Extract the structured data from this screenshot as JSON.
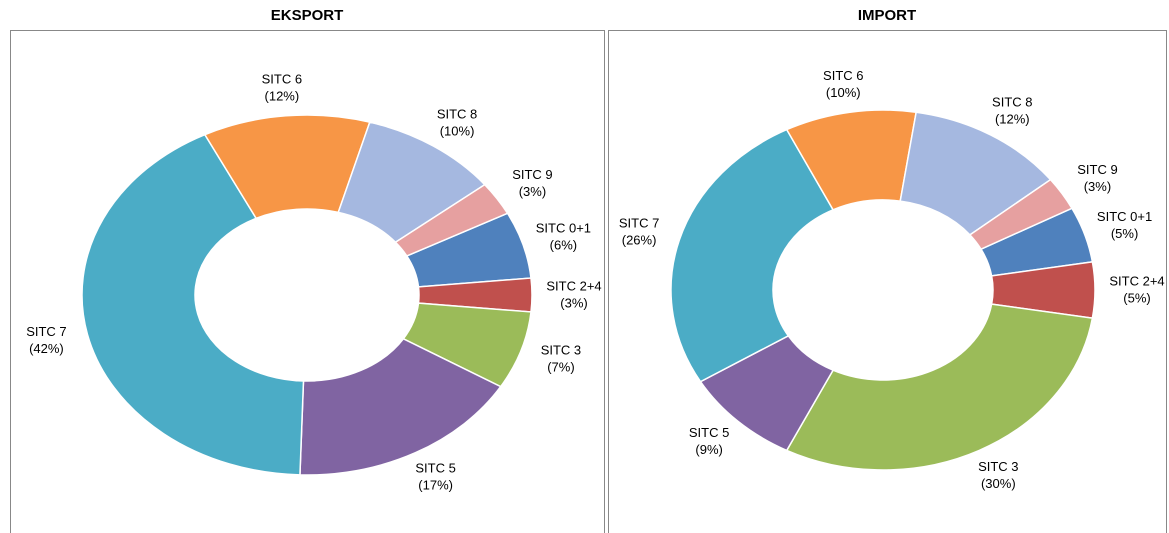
{
  "chart_data": [
    {
      "type": "donut",
      "title": "EKSPORT",
      "categories": [
        "SITC 0+1",
        "SITC 2+4",
        "SITC 3",
        "SITC 5",
        "SITC 7",
        "SITC 6",
        "SITC 8",
        "SITC 9"
      ],
      "values": [
        6,
        3,
        7,
        17,
        42,
        12,
        10,
        3
      ],
      "value_labels": [
        "(6%)",
        "(3%)",
        "(7%)",
        "(17%)",
        "(42%)",
        "(12%)",
        "(10%)",
        "(3%)"
      ],
      "colors": [
        "#4f81bd",
        "#c0504d",
        "#9bbb59",
        "#8064a2",
        "#4bacc6",
        "#f79646",
        "#a5b8e0",
        "#e6a0a0"
      ]
    },
    {
      "type": "donut",
      "title": "IMPORT",
      "categories": [
        "SITC 0+1",
        "SITC 2+4",
        "SITC 3",
        "SITC 5",
        "SITC 7",
        "SITC 6",
        "SITC 8",
        "SITC 9"
      ],
      "values": [
        5,
        5,
        30,
        9,
        26,
        10,
        12,
        3
      ],
      "value_labels": [
        "(5%)",
        "(5%)",
        "(30%)",
        "(9%)",
        "(26%)",
        "(10%)",
        "(12%)",
        "(3%)"
      ],
      "colors": [
        "#4f81bd",
        "#c0504d",
        "#9bbb59",
        "#8064a2",
        "#4bacc6",
        "#f79646",
        "#a5b8e0",
        "#e6a0a0"
      ]
    }
  ]
}
